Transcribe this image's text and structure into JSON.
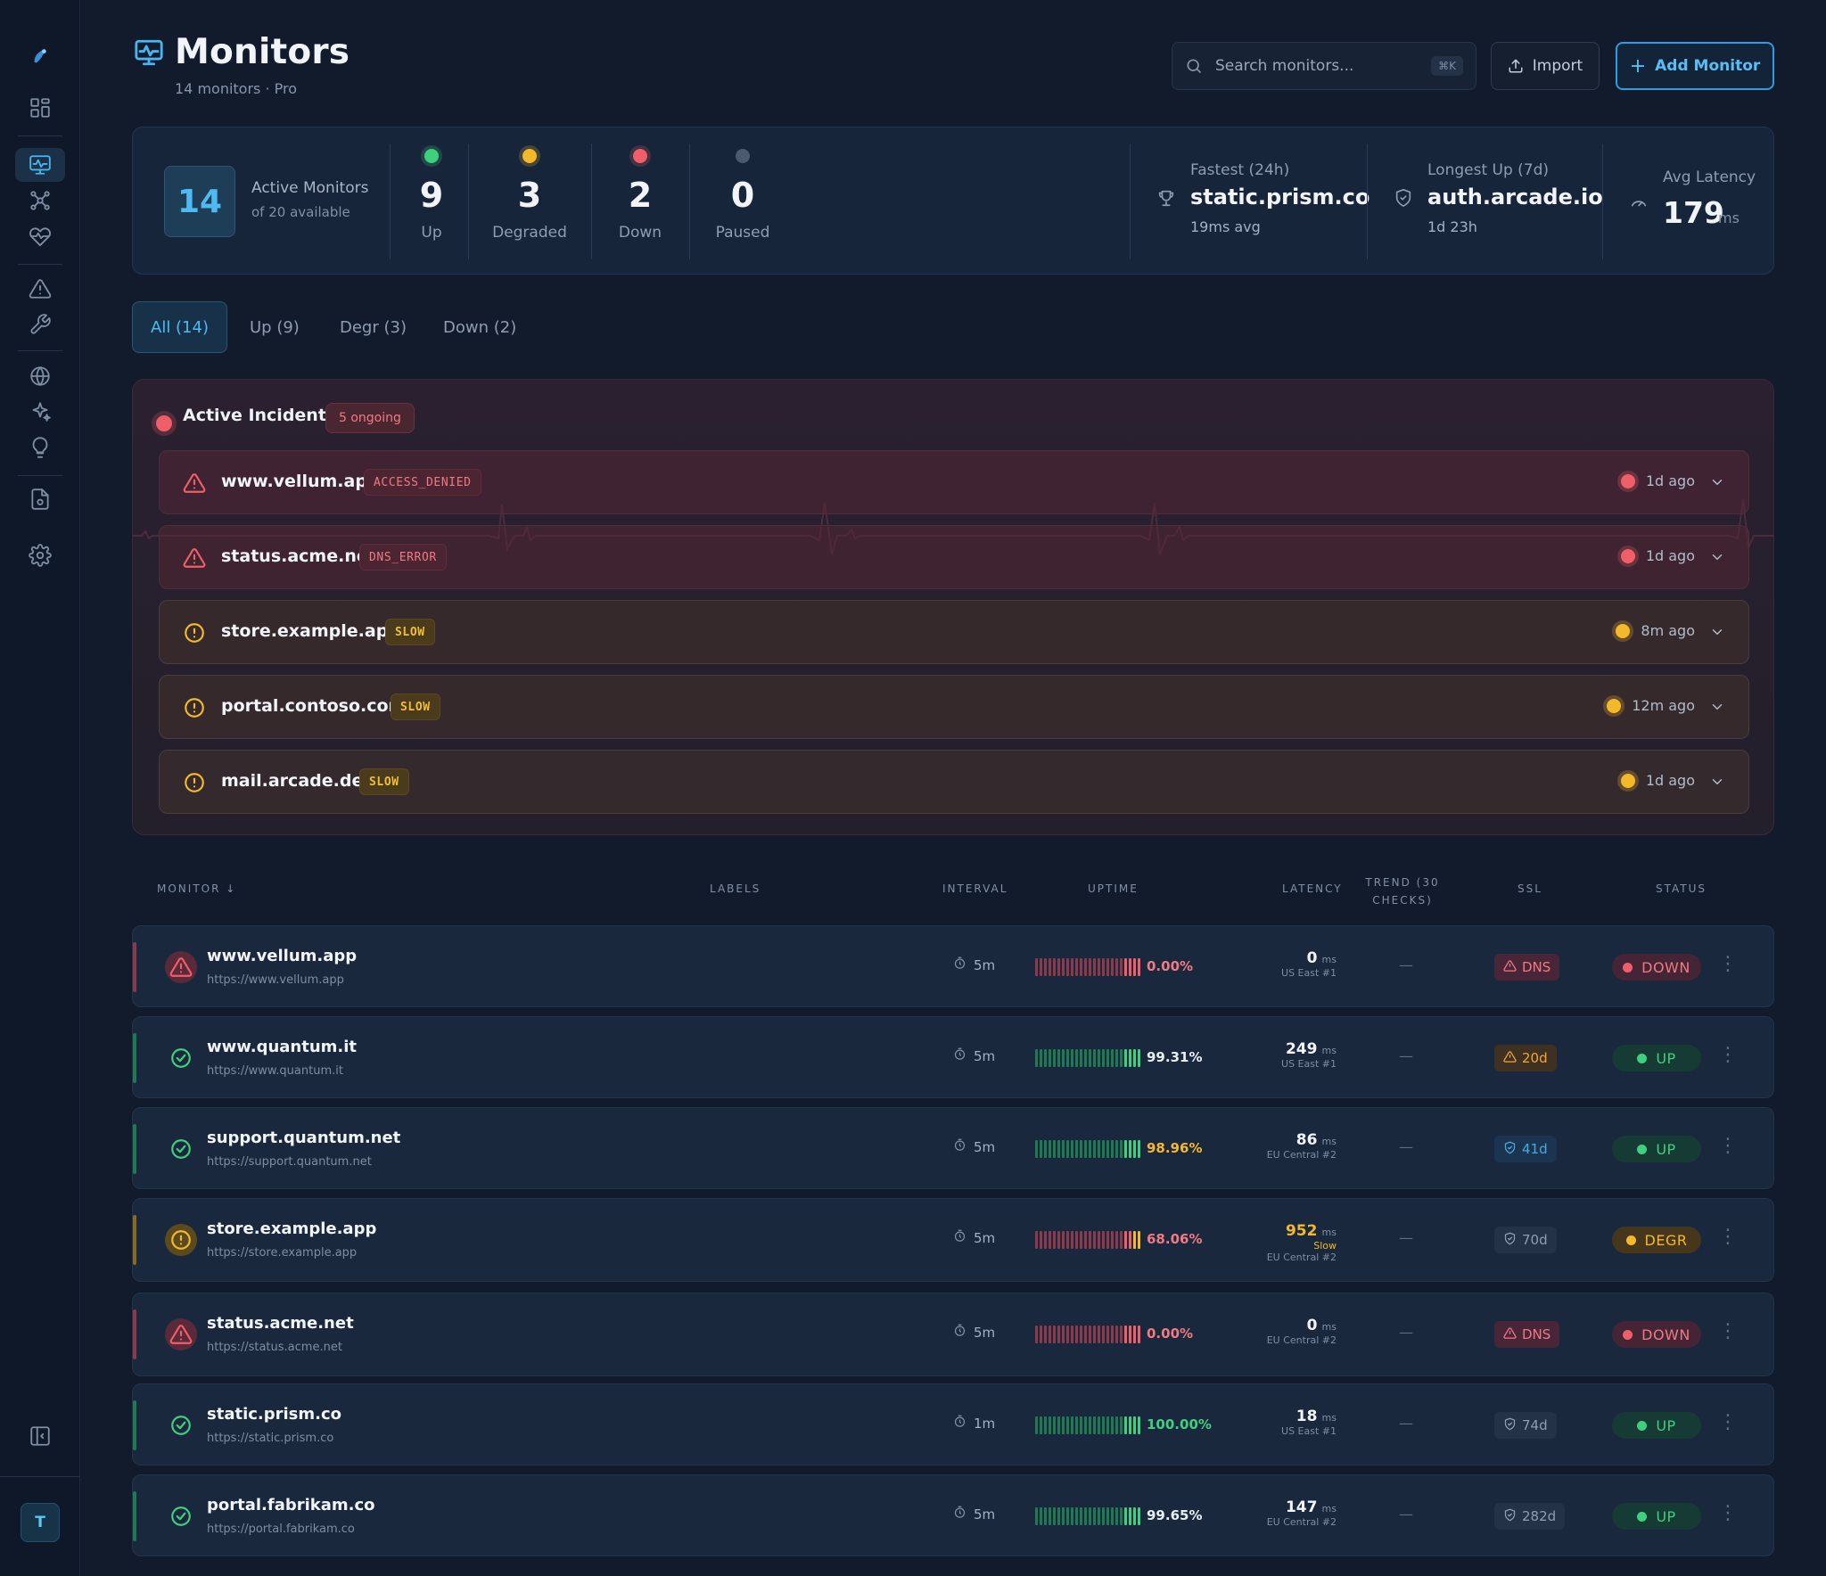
{
  "header": {
    "title": "Monitors",
    "subtitle": "14 monitors · Pro",
    "search_placeholder": "Search monitors...",
    "search_shortcut": "⌘K",
    "import_label": "Import",
    "add_label": "Add Monitor"
  },
  "sidebar": {
    "avatar": "T",
    "items": [
      "logo",
      "dashboard",
      "monitors",
      "network",
      "heartbeat",
      "alerts",
      "maintenance",
      "globe",
      "ai",
      "insights",
      "reports",
      "settings",
      "collapse"
    ]
  },
  "stats": {
    "active_count": "14",
    "active_label": "Active Monitors",
    "active_sub": "of 20 available",
    "up": {
      "value": "9",
      "label": "Up",
      "color": "#3fd07e"
    },
    "degraded": {
      "value": "3",
      "label": "Degraded",
      "color": "#f4b92b"
    },
    "down": {
      "value": "2",
      "label": "Down",
      "color": "#ef5f67"
    },
    "paused": {
      "value": "0",
      "label": "Paused",
      "color": "#4b5a6e"
    },
    "fastest_label": "Fastest (24h)",
    "fastest_value": "static.prism.co",
    "fastest_sub": "19ms avg",
    "longest_label": "Longest Up (7d)",
    "longest_value": "auth.arcade.io",
    "longest_sub": "1d 23h",
    "latency_label": "Avg Latency",
    "latency_value": "179",
    "latency_unit": "ms"
  },
  "tabs": [
    {
      "label": "All (14)",
      "active": true
    },
    {
      "label": "Up (9)"
    },
    {
      "label": "Degr (3)"
    },
    {
      "label": "Down (2)"
    }
  ],
  "incidents": {
    "title": "Active Incidents",
    "badge": "5 ongoing",
    "items": [
      {
        "host": "www.vellum.app",
        "tag": "ACCESS_DENIED",
        "severity": "red",
        "time": "1d ago"
      },
      {
        "host": "status.acme.net",
        "tag": "DNS_ERROR",
        "severity": "red",
        "time": "1d ago"
      },
      {
        "host": "store.example.app",
        "tag": "SLOW",
        "severity": "yellow",
        "time": "8m ago"
      },
      {
        "host": "portal.contoso.com",
        "tag": "SLOW",
        "severity": "yellow",
        "time": "12m ago"
      },
      {
        "host": "mail.arcade.dev",
        "tag": "SLOW",
        "severity": "yellow",
        "time": "1d ago"
      }
    ]
  },
  "table": {
    "headers": {
      "monitor": "MONITOR",
      "labels": "LABELS",
      "interval": "INTERVAL",
      "uptime": "UPTIME",
      "latency": "LATENCY",
      "trend": "TREND (30 CHECKS)",
      "ssl": "SSL",
      "status": "STATUS"
    },
    "rows": [
      {
        "name": "www.vellum.app",
        "url": "https://www.vellum.app",
        "interval": "5m",
        "uptime": "0.00%",
        "uptime_color": "#f07a83",
        "bar_colors": [
          "#8a3a4a",
          "#8a3a4a",
          "#8a3a4a",
          "#8a3a4a",
          "#8a3a4a",
          "#8a3a4a",
          "#8a3a4a",
          "#8a3a4a",
          "#8a3a4a",
          "#8a3a4a",
          "#8a3a4a",
          "#8a3a4a",
          "#8a3a4a",
          "#8a3a4a",
          "#8a3a4a",
          "#8a3a4a",
          "#8a3a4a",
          "#8a3a4a",
          "#8a3a4a",
          "#8a3a4a",
          "#ef5f67",
          "#ef5f67",
          "#ef5f67",
          "#ef5f67"
        ],
        "latency": "0",
        "latency_unit": "ms",
        "region": "US East #1",
        "trend": "—",
        "ssl": "DNS",
        "ssl_kind": "dns",
        "status": "DOWN",
        "status_kind": "down"
      },
      {
        "name": "www.quantum.it",
        "url": "https://www.quantum.it",
        "interval": "5m",
        "uptime": "99.31%",
        "uptime_color": "#e8eef5",
        "bar_colors": [
          "#1f7a52",
          "#1f7a52",
          "#1f7a52",
          "#1f7a52",
          "#1f7a52",
          "#1f7a52",
          "#1f7a52",
          "#1f7a52",
          "#1f7a52",
          "#1f7a52",
          "#1f7a52",
          "#1f7a52",
          "#1f7a52",
          "#1f7a52",
          "#1f7a52",
          "#1f7a52",
          "#1f7a52",
          "#1f7a52",
          "#1f7a52",
          "#1f7a52",
          "#3fd07e",
          "#3fd07e",
          "#3fd07e",
          "#3fd07e"
        ],
        "latency": "249",
        "latency_unit": "ms",
        "region": "US East #1",
        "trend": "—",
        "ssl": "20d",
        "ssl_kind": "warn",
        "status": "UP",
        "status_kind": "up"
      },
      {
        "name": "support.quantum.net",
        "url": "https://support.quantum.net",
        "interval": "5m",
        "uptime": "98.96%",
        "uptime_color": "#f4b92b",
        "bar_colors": [
          "#1f7a52",
          "#1f7a52",
          "#1f7a52",
          "#1f7a52",
          "#1f7a52",
          "#1f7a52",
          "#1f7a52",
          "#1f7a52",
          "#1f7a52",
          "#1f7a52",
          "#1f7a52",
          "#1f7a52",
          "#1f7a52",
          "#1f7a52",
          "#1f7a52",
          "#1f7a52",
          "#1f7a52",
          "#1f7a52",
          "#1f7a52",
          "#1f7a52",
          "#3fd07e",
          "#3fd07e",
          "#3fd07e",
          "#3fd07e"
        ],
        "latency": "86",
        "latency_unit": "ms",
        "region": "EU Central #2",
        "trend": "—",
        "ssl": "41d",
        "ssl_kind": "ok",
        "status": "UP",
        "status_kind": "up"
      },
      {
        "name": "store.example.app",
        "url": "https://store.example.app",
        "interval": "5m",
        "uptime": "68.06%",
        "uptime_color": "#f07a83",
        "bar_colors": [
          "#8a3a4a",
          "#8a3a4a",
          "#8a3a4a",
          "#8a3a4a",
          "#8a3a4a",
          "#8a3a4a",
          "#8a3a4a",
          "#8a3a4a",
          "#8a3a4a",
          "#8a3a4a",
          "#8a3a4a",
          "#8a3a4a",
          "#8a3a4a",
          "#8a3a4a",
          "#8a3a4a",
          "#8a3a4a",
          "#8a3a4a",
          "#8a3a4a",
          "#8a3a4a",
          "#8a3a4a",
          "#ef5f67",
          "#ef5f67",
          "#f4b92b",
          "#f4b92b"
        ],
        "latency": "952",
        "latency_unit": "ms",
        "latency_color": "#f4b92b",
        "slow": "Slow",
        "region": "EU Central #2",
        "trend": "—",
        "ssl": "70d",
        "ssl_kind": "mute",
        "status": "DEGR",
        "status_kind": "degr"
      },
      {
        "name": "status.acme.net",
        "url": "https://status.acme.net",
        "interval": "5m",
        "uptime": "0.00%",
        "uptime_color": "#f07a83",
        "bar_colors": [
          "#8a3a4a",
          "#8a3a4a",
          "#8a3a4a",
          "#8a3a4a",
          "#8a3a4a",
          "#8a3a4a",
          "#8a3a4a",
          "#8a3a4a",
          "#8a3a4a",
          "#8a3a4a",
          "#8a3a4a",
          "#8a3a4a",
          "#8a3a4a",
          "#8a3a4a",
          "#8a3a4a",
          "#8a3a4a",
          "#8a3a4a",
          "#8a3a4a",
          "#8a3a4a",
          "#8a3a4a",
          "#ef5f67",
          "#ef5f67",
          "#ef5f67",
          "#ef5f67"
        ],
        "latency": "0",
        "latency_unit": "ms",
        "region": "EU Central #2",
        "trend": "—",
        "ssl": "DNS",
        "ssl_kind": "dns",
        "status": "DOWN",
        "status_kind": "down"
      },
      {
        "name": "static.prism.co",
        "url": "https://static.prism.co",
        "interval": "1m",
        "uptime": "100.00%",
        "uptime_color": "#3fd07e",
        "bar_colors": [
          "#1f7a52",
          "#1f7a52",
          "#1f7a52",
          "#1f7a52",
          "#1f7a52",
          "#1f7a52",
          "#1f7a52",
          "#1f7a52",
          "#1f7a52",
          "#1f7a52",
          "#1f7a52",
          "#1f7a52",
          "#1f7a52",
          "#1f7a52",
          "#1f7a52",
          "#1f7a52",
          "#1f7a52",
          "#1f7a52",
          "#1f7a52",
          "#1f7a52",
          "#3fd07e",
          "#3fd07e",
          "#3fd07e",
          "#3fd07e"
        ],
        "latency": "18",
        "latency_unit": "ms",
        "region": "US East #1",
        "trend": "—",
        "ssl": "74d",
        "ssl_kind": "mute",
        "status": "UP",
        "status_kind": "up"
      },
      {
        "name": "portal.fabrikam.co",
        "url": "https://portal.fabrikam.co",
        "interval": "5m",
        "uptime": "99.65%",
        "uptime_color": "#e8eef5",
        "bar_colors": [
          "#1f7a52",
          "#1f7a52",
          "#1f7a52",
          "#1f7a52",
          "#1f7a52",
          "#1f7a52",
          "#1f7a52",
          "#1f7a52",
          "#1f7a52",
          "#1f7a52",
          "#1f7a52",
          "#1f7a52",
          "#1f7a52",
          "#1f7a52",
          "#1f7a52",
          "#1f7a52",
          "#1f7a52",
          "#1f7a52",
          "#1f7a52",
          "#1f7a52",
          "#3fd07e",
          "#3fd07e",
          "#3fd07e",
          "#3fd07e"
        ],
        "latency": "147",
        "latency_unit": "ms",
        "region": "EU Central #2",
        "trend": "—",
        "ssl": "282d",
        "ssl_kind": "mute",
        "status": "UP",
        "status_kind": "up"
      }
    ]
  }
}
